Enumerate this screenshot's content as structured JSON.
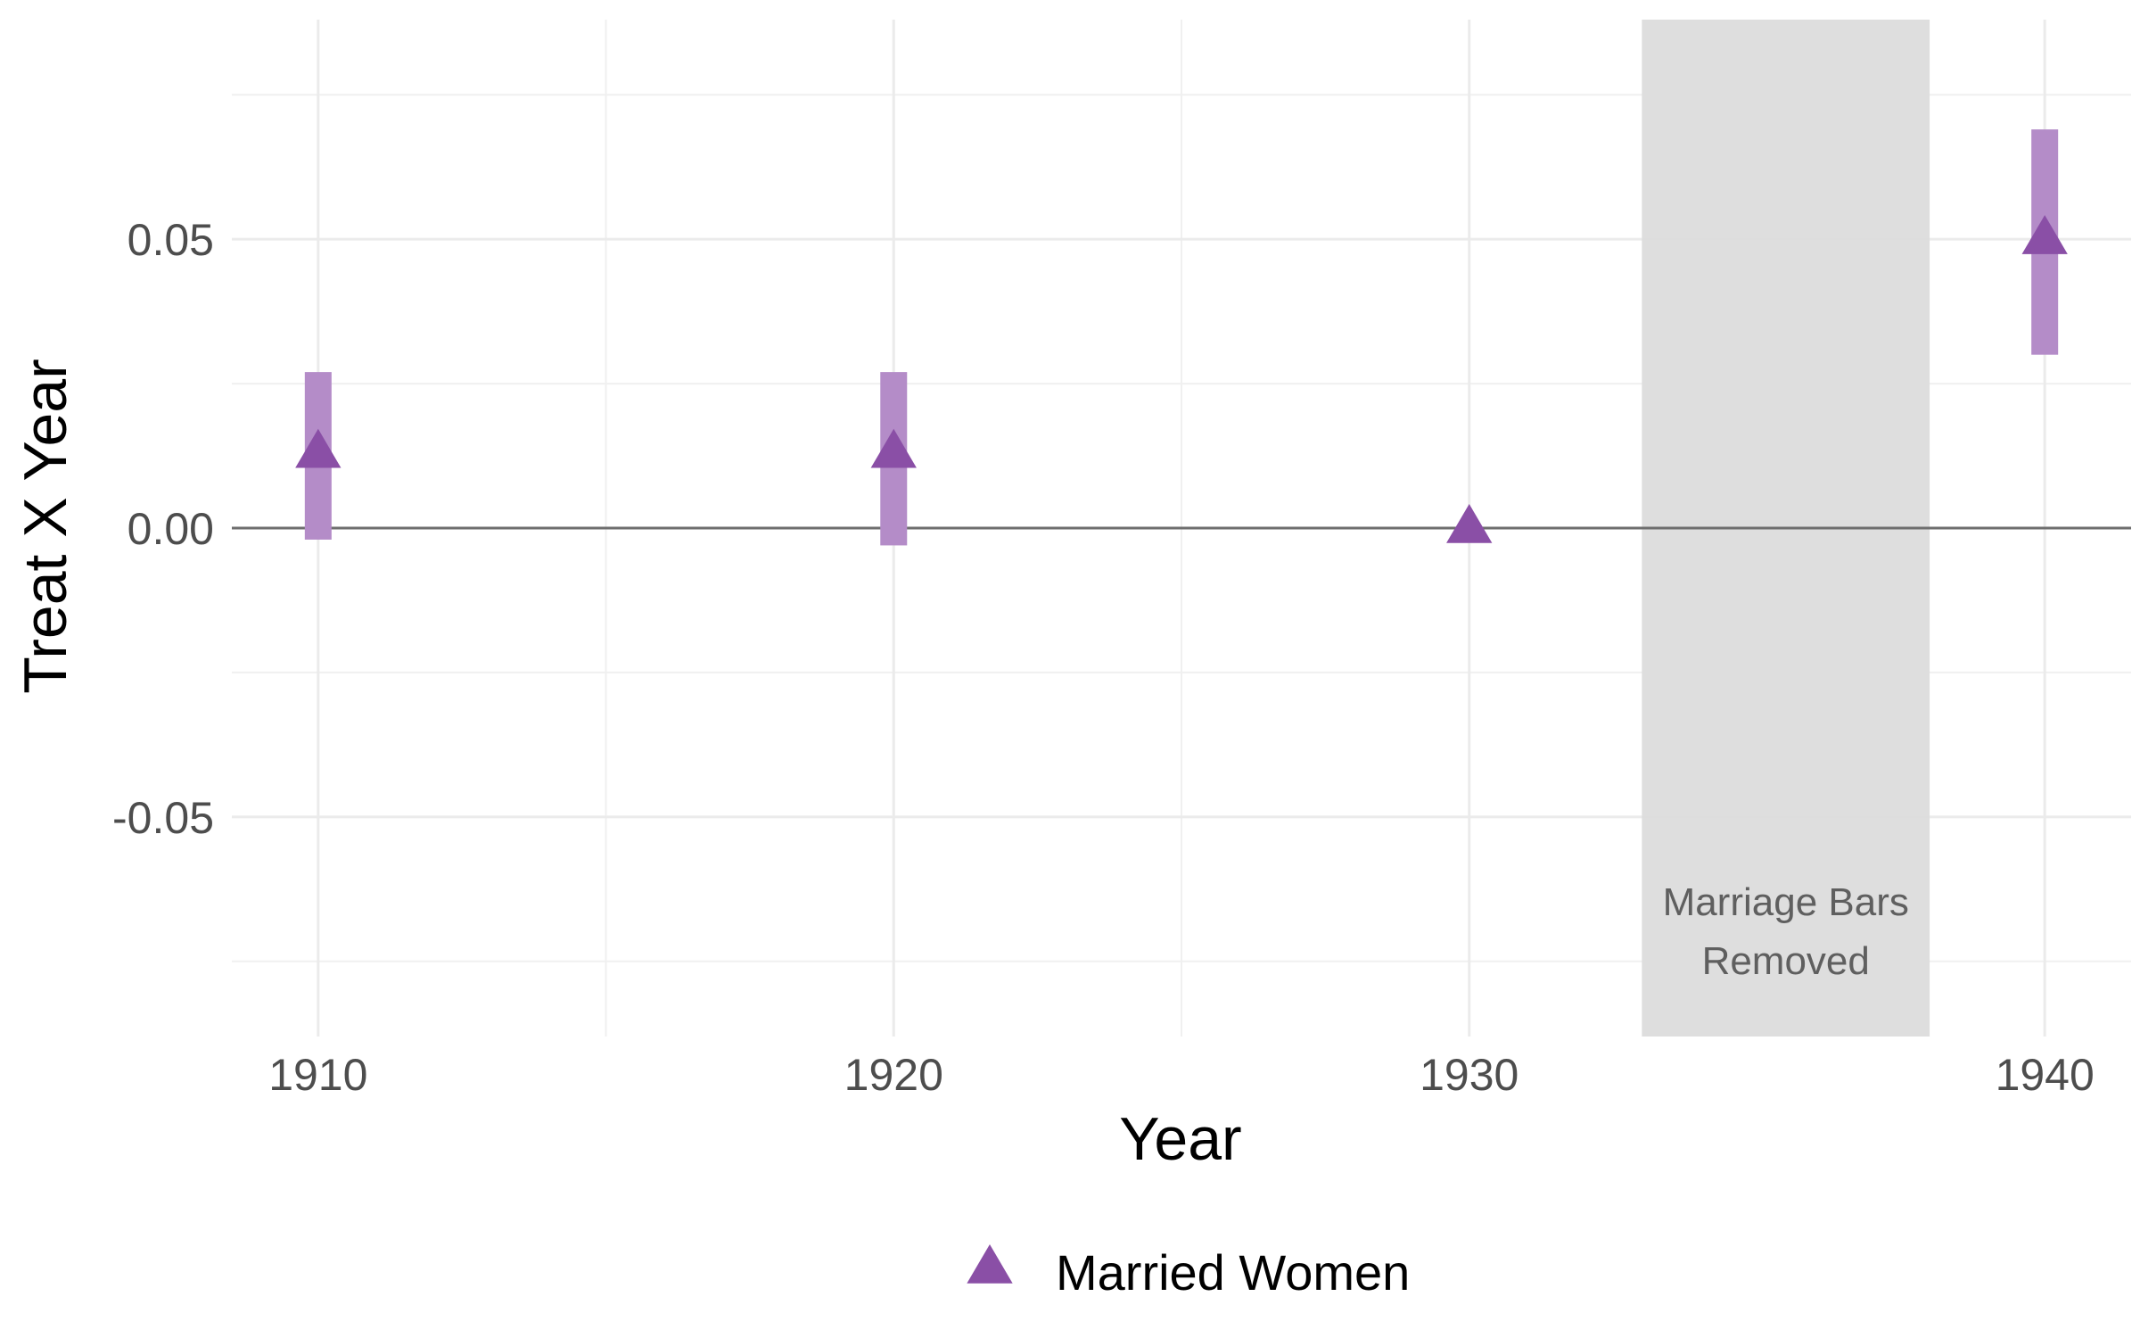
{
  "chart_data": {
    "type": "scatter",
    "title": "",
    "xlabel": "Year",
    "ylabel": "Treat X Year",
    "xlim": [
      1908.5,
      1941.5
    ],
    "ylim": [
      -0.088,
      0.088
    ],
    "x_ticks": [
      1910,
      1920,
      1930,
      1940
    ],
    "x_tick_labels": [
      "1910",
      "1920",
      "1930",
      "1940"
    ],
    "y_ticks": [
      -0.05,
      0.0,
      0.05
    ],
    "y_tick_labels": [
      "-0.05",
      "0.00",
      "0.05"
    ],
    "grid": true,
    "reference_line_y": 0.0,
    "series": [
      {
        "name": "Married Women",
        "marker": "triangle",
        "color": "#8a4fa6",
        "errorbar_color": "#b48cc8",
        "points": [
          {
            "x": 1910,
            "y": 0.013,
            "ci_low": -0.002,
            "ci_high": 0.027
          },
          {
            "x": 1920,
            "y": 0.013,
            "ci_low": -0.003,
            "ci_high": 0.027
          },
          {
            "x": 1930,
            "y": 0.0,
            "ci_low": null,
            "ci_high": null
          },
          {
            "x": 1940,
            "y": 0.05,
            "ci_low": 0.03,
            "ci_high": 0.069
          }
        ]
      }
    ],
    "shaded_region": {
      "x_start": 1933,
      "x_end": 1938,
      "color": "#dcdcdc",
      "label_lines": [
        "Marriage Bars",
        "Removed"
      ]
    },
    "legend": {
      "position": "bottom"
    }
  }
}
